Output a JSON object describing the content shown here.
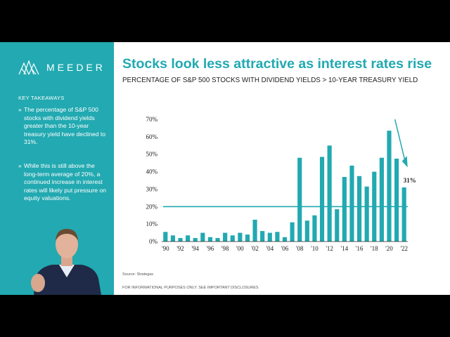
{
  "brand": {
    "name": "MEEDER",
    "logo_icon": "meeder-mountains-icon",
    "accent": "#22a9b1"
  },
  "sidebar": {
    "heading": "KEY TAKEAWAYS",
    "items": [
      {
        "bullet": "»",
        "text": "The percentage of S&P 500 stocks with dividend yields greater than the 10-year treasury yield have declined to 31%."
      },
      {
        "bullet": "»",
        "text": "While this is still above the long-term average of 20%, a continued increase in interest rates will likely put pressure on equity valuations."
      }
    ]
  },
  "slide": {
    "title": "Stocks look less attractive as interest rates rise",
    "subtitle": "PERCENTAGE OF S&P 500 STOCKS WITH DIVIDEND YIELDS > 10-YEAR TREASURY YIELD",
    "source": "Source: Strategas",
    "disclaimer": "FOR INFORMATIONAL PURPOSES ONLY. SEE IMPORTANT DISCLOSURES"
  },
  "chart_data": {
    "type": "bar",
    "title": "",
    "xlabel": "",
    "ylabel": "",
    "categories": [
      "1990",
      "1991",
      "1992",
      "1993",
      "1994",
      "1995",
      "1996",
      "1997",
      "1998",
      "1999",
      "2000",
      "2001",
      "2002",
      "2003",
      "2004",
      "2005",
      "2006",
      "2007",
      "2008",
      "2009",
      "2010",
      "2011",
      "2012",
      "2013",
      "2014",
      "2015",
      "2016",
      "2017",
      "2018",
      "2019",
      "2020",
      "2021",
      "2022"
    ],
    "x_tick_labels": [
      "'90",
      "'92",
      "'94",
      "'96",
      "'98",
      "'00",
      "'02",
      "'04",
      "'06",
      "'08",
      "'10",
      "'12",
      "'14",
      "'16",
      "'18",
      "'20",
      "'22"
    ],
    "values": [
      5.5,
      3.5,
      2,
      3.5,
      2,
      5,
      2.5,
      2,
      5,
      3.5,
      5,
      4,
      12.5,
      6,
      5,
      5.5,
      2.5,
      11,
      48,
      12,
      15,
      48.5,
      55,
      18.5,
      37,
      43.5,
      37.5,
      31.5,
      40,
      48,
      63.5,
      47.5,
      31
    ],
    "y_ticks": [
      0,
      10,
      20,
      30,
      40,
      50,
      60,
      70
    ],
    "y_tick_labels": [
      "0%",
      "10%",
      "20%",
      "30%",
      "40%",
      "50%",
      "60%",
      "70%"
    ],
    "ylim": [
      0,
      70
    ],
    "reference_line": 20,
    "annotation": "31%",
    "bar_color": "#22a9b1",
    "grid": false
  }
}
